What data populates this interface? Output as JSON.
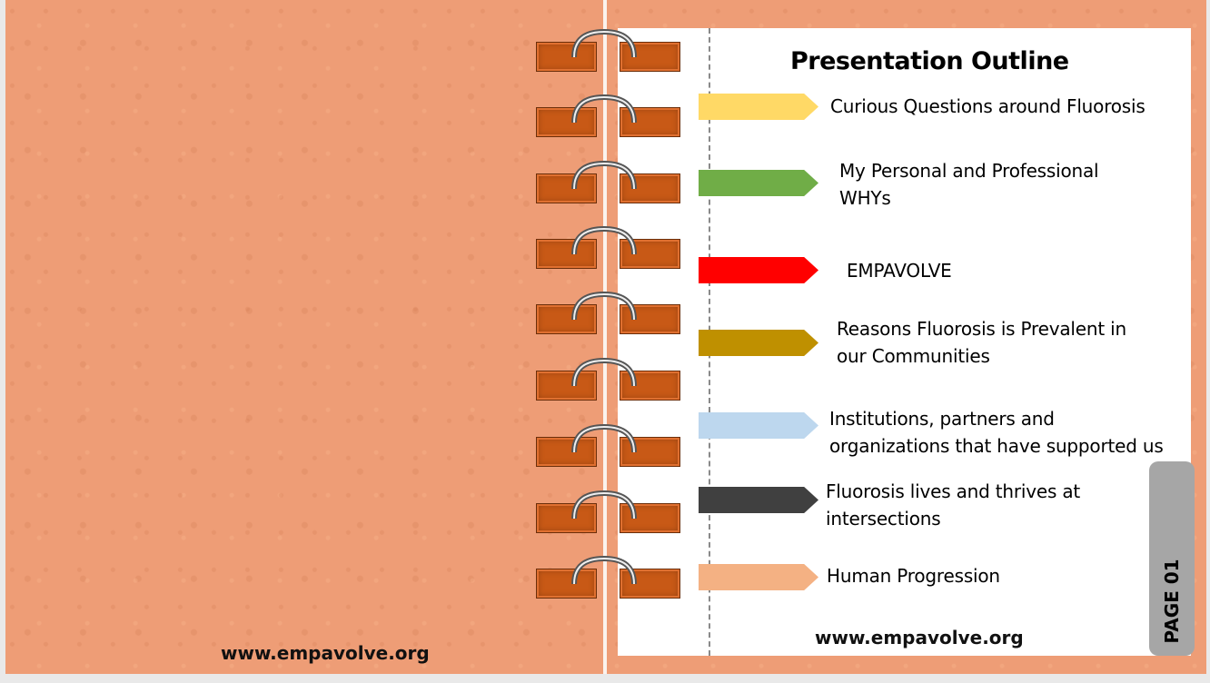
{
  "outline": {
    "title": "Presentation Outline",
    "items": [
      {
        "label": "Curious Questions around Fluorosis",
        "color": "#ffd966"
      },
      {
        "label": "My Personal and Professional WHYs",
        "color": "#70ad47"
      },
      {
        "label": "EMPAVOLVE",
        "color": "#ff0000"
      },
      {
        "label": "Reasons Fluorosis is Prevalent in our Communities",
        "color": "#bf9000"
      },
      {
        "label": "Institutions, partners and organizations that have supported us",
        "color": "#bdd7ee"
      },
      {
        "label": "Fluorosis lives and thrives at intersections",
        "color": "#404040"
      },
      {
        "label": "Human Progression",
        "color": "#f4b183"
      }
    ]
  },
  "footer": {
    "left_url": "www.empavolve.org",
    "right_url": "www.empavolve.org"
  },
  "page_tab": {
    "label": "PAGE 01"
  },
  "colors": {
    "background": "#ee9d76",
    "ring_hole": "#c85916",
    "page_tab": "#a6a6a6"
  },
  "icons": {
    "binder_ring": "binder-ring-icon"
  }
}
